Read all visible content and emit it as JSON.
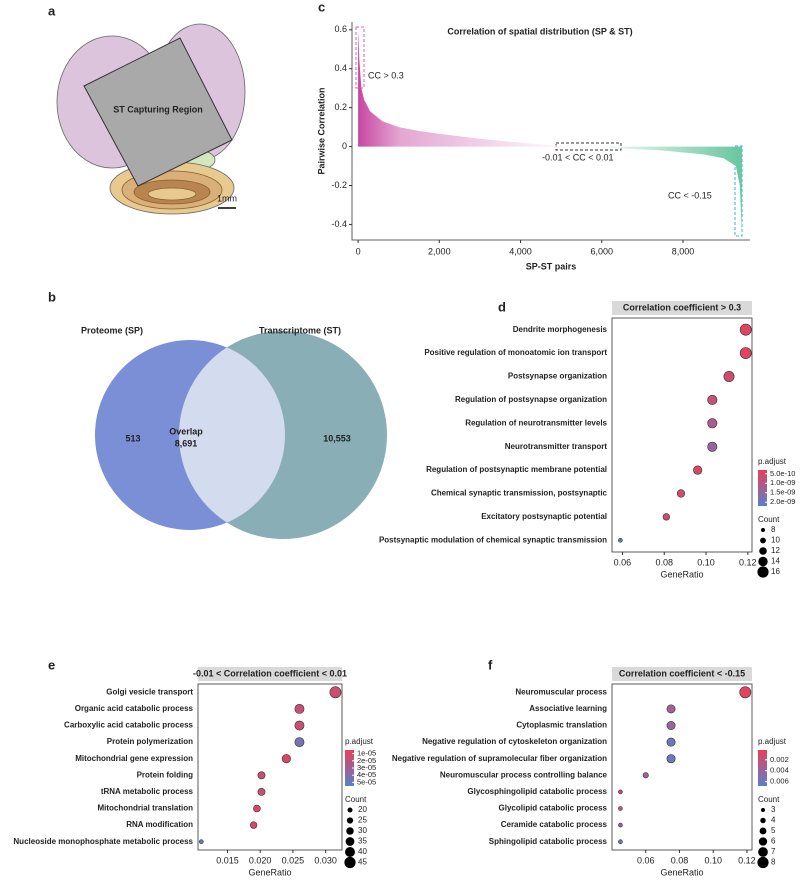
{
  "panels": {
    "a": {
      "label": "a",
      "region": "ST Capturing Region",
      "scale": "1mm"
    },
    "b": {
      "label": "b",
      "left": "Proteome (SP)",
      "right": "Transcriptome (ST)",
      "left_only": "513",
      "overlap_title": "Overlap",
      "overlap": "8,691",
      "right_only": "10,553"
    }
  },
  "chart_data": [
    {
      "type": "area",
      "label": "c",
      "title": "Correlation of spatial distribution (SP & ST)",
      "xlabel": "SP-ST pairs",
      "ylabel": "Pairwise Correlation",
      "x": [
        0,
        30,
        80,
        150,
        300,
        600,
        1000,
        1500,
        2000,
        3000,
        4000,
        4500,
        5000,
        5500,
        6500,
        7500,
        8500,
        9000,
        9300,
        9400,
        9450
      ],
      "values": [
        0.6,
        0.45,
        0.3,
        0.24,
        0.18,
        0.13,
        0.1,
        0.08,
        0.065,
        0.04,
        0.02,
        0.01,
        0.005,
        0,
        -0.01,
        -0.02,
        -0.04,
        -0.06,
        -0.1,
        -0.2,
        -0.45
      ],
      "color_positive": "#c2399a",
      "color_negative": "#5fc39a",
      "xlim": [
        -150,
        9650
      ],
      "ylim": [
        -0.48,
        0.64
      ],
      "xticks": [
        0,
        {
          "value": 2000,
          "label": "2,000"
        },
        {
          "value": 4000,
          "label": "4,000"
        },
        {
          "value": 6000,
          "label": "6,000"
        },
        {
          "value": 8000,
          "label": "8,000"
        }
      ],
      "yticks": [
        -0.4,
        -0.2,
        0,
        0.2,
        0.4,
        0.6
      ],
      "annotations": [
        "CC > 0.3",
        "-0.01 < CC < 0.01",
        "CC < -0.15"
      ]
    },
    {
      "type": "dot",
      "label": "d",
      "title": "Correlation coefficient > 0.3",
      "xlabel": "GeneRatio",
      "categories": [
        "Dendrite morphogenesis",
        "Positive regulation of monoatomic ion transport",
        "Postsynapse organization",
        "Regulation of postsynapse organization",
        "Regulation of neurotransmitter levels",
        "Neurotransmitter transport",
        "Regulation of postsynaptic membrane potential",
        "Chemical synaptic transmission, postsynaptic",
        "Excitatory postsynaptic potential",
        "Postsynaptic modulation of chemical synaptic transmission"
      ],
      "values": [
        0.119,
        0.119,
        0.111,
        0.103,
        0.103,
        0.103,
        0.096,
        0.088,
        0.081,
        0.059
      ],
      "padjust": [
        4e-10,
        4e-10,
        6e-10,
        8e-10,
        1.1e-09,
        1.4e-09,
        5e-10,
        6e-10,
        6e-10,
        2e-09
      ],
      "counts": [
        16,
        16,
        15,
        14,
        14,
        14,
        13,
        12,
        11,
        8
      ],
      "xlim": [
        0.055,
        0.122
      ],
      "xticks": [
        0.06,
        0.08,
        {
          "value": 0.1,
          "label": "0.10"
        },
        0.12
      ],
      "color_legend": {
        "title": "p.adjust",
        "lim": [
          3e-10,
          2.2e-09
        ],
        "colors": [
          "#e8405a",
          "#5b7fcc"
        ],
        "ticks": [
          {
            "value": 5e-10,
            "label": "5.0e-10"
          },
          {
            "value": 1e-09,
            "label": "1.0e-09"
          },
          {
            "value": 1.5e-09,
            "label": "1.5e-09"
          },
          {
            "value": 2e-09,
            "label": "2.0e-09"
          }
        ]
      },
      "size_legend": {
        "title": "Count",
        "lim": [
          8,
          16
        ],
        "ticks": [
          8,
          10,
          12,
          14,
          16
        ]
      }
    },
    {
      "type": "dot",
      "label": "e",
      "title": "-0.01 < Correlation coefficient < 0.01",
      "xlabel": "GeneRatio",
      "categories": [
        "Golgi vesicle transport",
        "Organic acid catabolic process",
        "Carboxylic acid catabolic process",
        "Protein polymerization",
        "Mitochondrial gene expression",
        "Protein folding",
        "tRNA metabolic process",
        "Mitochondrial translation",
        "RNA modification",
        "Nucleoside monophosphate metabolic process"
      ],
      "values": [
        0.0315,
        0.026,
        0.026,
        0.026,
        0.024,
        0.0202,
        0.0202,
        0.0195,
        0.019,
        0.011
      ],
      "padjust": [
        1.5e-05,
        1.5e-05,
        1.5e-05,
        4.5e-05,
        1e-05,
        1.5e-05,
        1.5e-05,
        1e-05,
        1e-05,
        5e-05
      ],
      "counts": [
        45,
        37,
        37,
        37,
        34,
        29,
        29,
        28,
        27,
        16
      ],
      "xlim": [
        0.0105,
        0.0325
      ],
      "xticks": [
        0.015,
        {
          "value": 0.02,
          "label": "0.020"
        },
        0.025,
        {
          "value": 0.03,
          "label": "0.030"
        }
      ],
      "color_legend": {
        "title": "p.adjust",
        "lim": [
          5e-06,
          5.5e-05
        ],
        "colors": [
          "#e8405a",
          "#5b7fcc"
        ],
        "ticks": [
          {
            "value": 1e-05,
            "label": "1e-05"
          },
          {
            "value": 2e-05,
            "label": "2e-05"
          },
          {
            "value": 3e-05,
            "label": "3e-05"
          },
          {
            "value": 4e-05,
            "label": "4e-05"
          },
          {
            "value": 5e-05,
            "label": "5e-05"
          }
        ]
      },
      "size_legend": {
        "title": "Count",
        "lim": [
          16,
          45
        ],
        "ticks": [
          20,
          25,
          30,
          35,
          40,
          45
        ]
      }
    },
    {
      "type": "dot",
      "label": "f",
      "title": "Correlation coefficient < -0.15",
      "xlabel": "GeneRatio",
      "categories": [
        "Neuromuscular process",
        "Associative learning",
        "Cytoplasmic translation",
        "Negative regulation of cytoskeleton organization",
        "Negative regulation of supramolecular fiber organization",
        "Neuromuscular process controlling balance",
        "Glycosphingolipid catabolic process",
        "Glycolipid catabolic process",
        "Ceramide catabolic process",
        "Sphingolipid catabolic process"
      ],
      "values": [
        0.119,
        0.075,
        0.075,
        0.075,
        0.075,
        0.06,
        0.045,
        0.045,
        0.045,
        0.045
      ],
      "padjust": [
        0.0005,
        0.0035,
        0.004,
        0.006,
        0.006,
        0.0035,
        0.0015,
        0.002,
        0.004,
        0.006
      ],
      "counts": [
        8,
        6,
        6,
        6,
        6,
        4,
        3,
        3,
        3,
        3
      ],
      "xlim": [
        0.04,
        0.123
      ],
      "xticks": [
        0.06,
        0.08,
        {
          "value": 0.1,
          "label": "0.10"
        },
        0.12
      ],
      "color_legend": {
        "title": "p.adjust",
        "lim": [
          0.0002,
          0.0068
        ],
        "colors": [
          "#e8405a",
          "#5b7fcc"
        ],
        "ticks": [
          0.002,
          0.004,
          0.006
        ]
      },
      "size_legend": {
        "title": "Count",
        "lim": [
          3,
          8
        ],
        "ticks": [
          3,
          4,
          5,
          6,
          7,
          8
        ]
      }
    }
  ]
}
